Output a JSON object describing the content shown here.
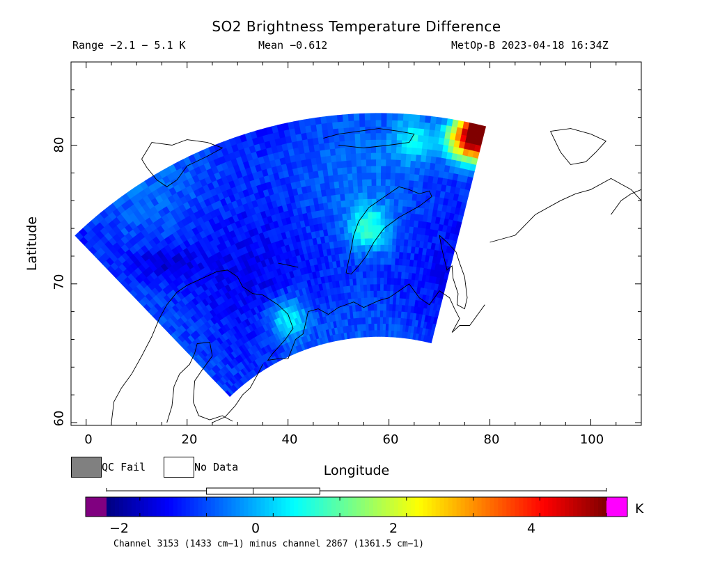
{
  "header": {
    "title": "SO2 Brightness Temperature Difference",
    "range": "Range −2.1 − 5.1 K",
    "mean": "Mean −0.612",
    "satellite_time": "MetOp-B 2023-04-18 16:34Z"
  },
  "legend": {
    "qc_fail_label": "QC Fail",
    "no_data_label": "No Data",
    "qc_fail_color": "#808080",
    "no_data_color": "#ffffff"
  },
  "colorbar": {
    "units": "K",
    "min": -2.5,
    "max": 5.0,
    "ticks": [
      "−2",
      "0",
      "2",
      "4"
    ],
    "tick_values": [
      -2,
      0,
      2,
      4
    ],
    "under_color": "#800080",
    "over_color": "#ff00ff",
    "range_indicator": [
      -1.0,
      0.7
    ],
    "range_indicator_mid": -0.3,
    "caption": "Channel 3153 (1433 cm−1) minus channel 2867 (1361.5 cm−1)"
  },
  "chart_data": {
    "type": "heatmap",
    "title": "SO2 Brightness Temperature Difference",
    "xlabel": "Longitude",
    "ylabel": "Latitude",
    "xlim": [
      -3,
      110
    ],
    "ylim": [
      59.8,
      86
    ],
    "x_ticks": [
      "0",
      "20",
      "40",
      "60",
      "80",
      "100"
    ],
    "x_tick_values": [
      0,
      20,
      40,
      60,
      80,
      100
    ],
    "y_ticks": [
      "60",
      "70",
      "80"
    ],
    "y_tick_values": [
      60,
      70,
      80
    ],
    "grid": false,
    "swath": {
      "center_lon": 58,
      "center_lat": 50.7,
      "outer_radius_lat_deg": 31.6,
      "inner_radius_lat_deg": 15.5,
      "lon_left_edge_deg": 7,
      "lon_right_edge": 79.5
    },
    "colorscale": "jet",
    "value_range": [
      -2.1,
      5.1
    ],
    "mean": -0.612,
    "hotspots": [
      {
        "lon": 79.5,
        "lat": 81.5,
        "value": 4.8
      },
      {
        "lon": 78,
        "lat": 80.2,
        "value": 2.4
      },
      {
        "lon": 74.5,
        "lat": 80.5,
        "value": 2.2
      },
      {
        "lon": 56,
        "lat": 74,
        "value": 0.8
      },
      {
        "lon": 40,
        "lat": 67.5,
        "value": 0.6
      },
      {
        "lon": 54,
        "lat": 62,
        "value": 0.5
      },
      {
        "lon": 65,
        "lat": 80.5,
        "value": 0.3
      }
    ]
  }
}
